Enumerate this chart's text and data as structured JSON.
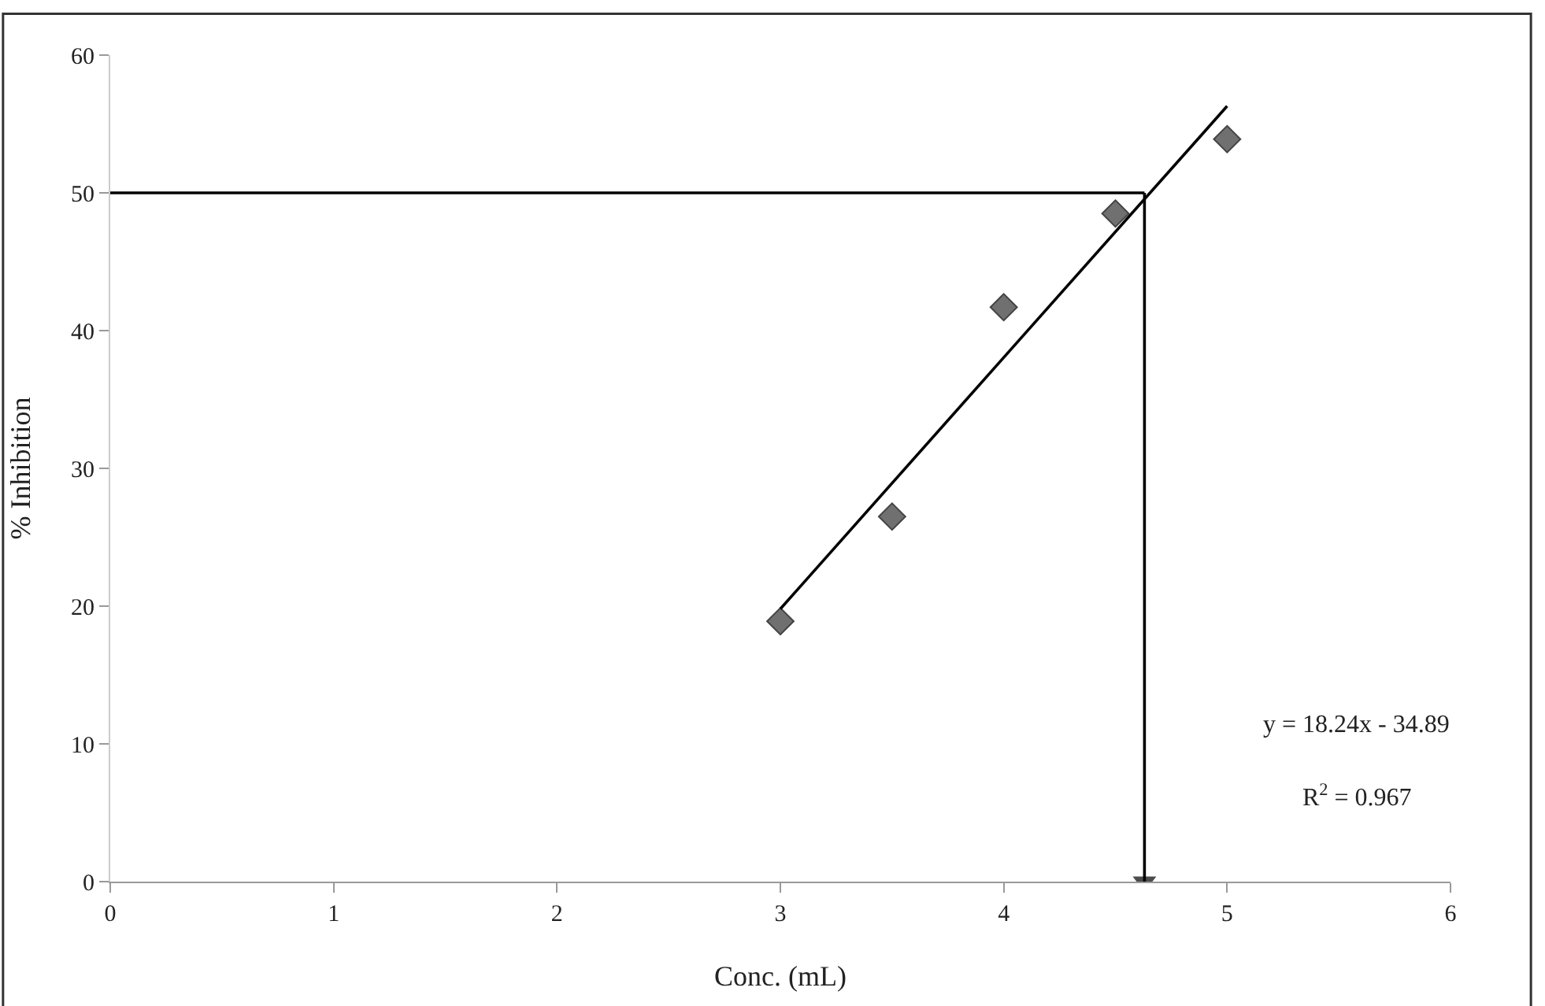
{
  "chart_data": {
    "type": "scatter",
    "xlabel": "Conc. (mL)",
    "ylabel": "% Inhibition",
    "xlim": [
      0,
      6
    ],
    "xticks": [
      0,
      1,
      2,
      3,
      4,
      5,
      6
    ],
    "ylim": [
      0,
      60
    ],
    "yticks": [
      0,
      10,
      20,
      30,
      40,
      50,
      60
    ],
    "marker": "diamond",
    "series": [
      {
        "color": "#707070",
        "x": [
          3,
          3.5,
          4,
          4.5,
          5
        ],
        "values": [
          18.9,
          26.5,
          41.7,
          48.5,
          53.9
        ]
      },
      {
        "type": "line",
        "color": "#000000",
        "marker": "none",
        "x": [
          3,
          5
        ],
        "values": [
          19.8,
          56.3
        ]
      },
      {
        "type": "line",
        "color": "#000000",
        "marker": "none",
        "x": [
          0,
          4.63
        ],
        "values": [
          50,
          50
        ]
      },
      {
        "type": "line",
        "color": "#000000",
        "marker": "triangle",
        "x": [
          4.63,
          4.63
        ],
        "values": [
          50,
          0
        ]
      }
    ],
    "annotations": [
      "y = 18.24x - 34.89",
      "R$^{2}$ = 0.967"
    ]
  }
}
